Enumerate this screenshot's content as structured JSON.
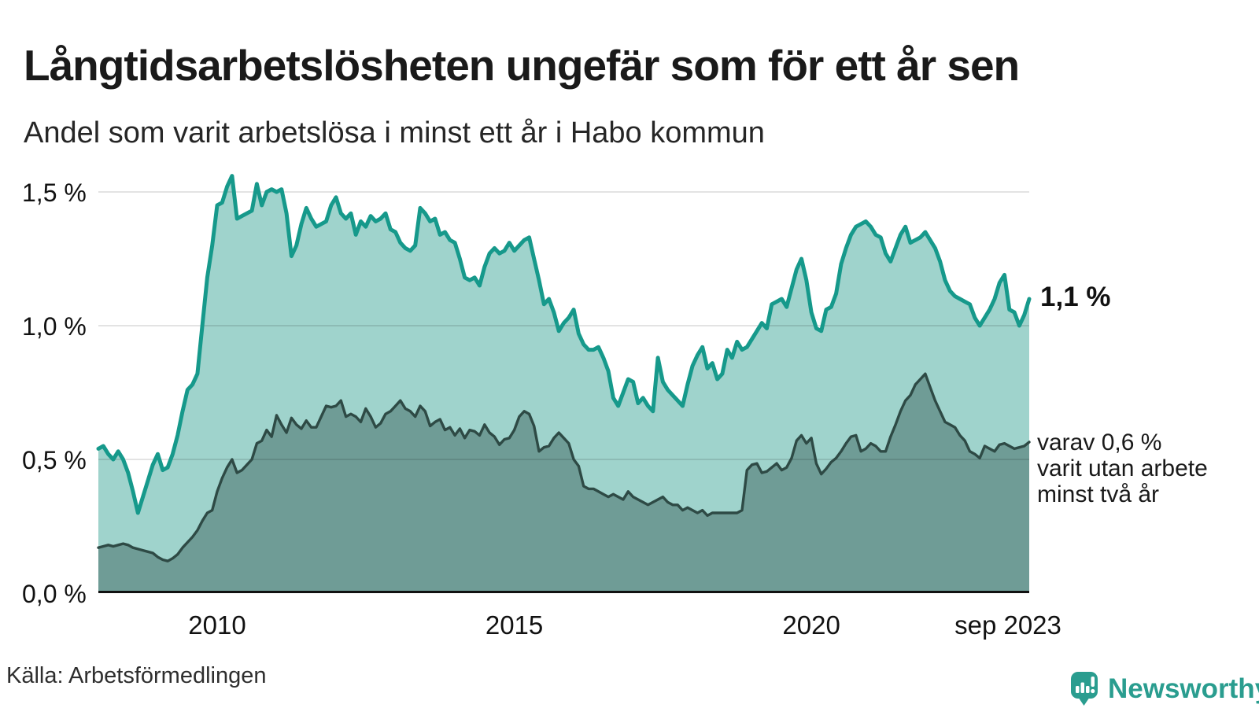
{
  "title": "Långtidsarbetslösheten ungefär som för ett år sen",
  "subtitle": "Andel som varit arbetslösa i minst ett år i Habo kommun",
  "source": "Källa: Arbetsförmedlingen",
  "branding": {
    "name": "Newsworthy"
  },
  "annotations": {
    "latest_total": "1,1 %",
    "secondary_line1": "varav 0,6 %",
    "secondary_line2": "varit utan arbete",
    "secondary_line3": "minst två år"
  },
  "colors": {
    "line_primary": "#16998b",
    "fill_primary": "#9fd3cc",
    "line_secondary": "#2e4a45",
    "fill_secondary": "#6f9c96",
    "axis": "#111111",
    "gridline": "rgba(0,0,0,0.11)",
    "brand_teal": "#2a9d8f"
  },
  "chart_data": {
    "type": "area",
    "title": "Långtidsarbetslösheten ungefär som för ett år sen",
    "subtitle": "Andel som varit arbetslösa i minst ett år i Habo kommun",
    "x_start": "2008-01",
    "x_end": "2023-09",
    "x_unit": "month",
    "ylabel": "",
    "ylim": [
      0,
      1.63
    ],
    "grid": "horizontal",
    "legend_position": "right-annotations",
    "y_ticks": [
      {
        "label": "1,5 %",
        "value": 1.5
      },
      {
        "label": "1,0 %",
        "value": 1.0
      },
      {
        "label": "0,5 %",
        "value": 0.5
      },
      {
        "label": "0,0 %",
        "value": 0.0
      }
    ],
    "x_ticks": [
      {
        "label": "2010",
        "month_index": 24
      },
      {
        "label": "2015",
        "month_index": 84
      },
      {
        "label": "2020",
        "month_index": 144
      },
      {
        "label": "sep 2023",
        "month_index": 188
      }
    ],
    "series": [
      {
        "name": "Andel arbetslösa minst ett år",
        "latest_label": "1,1 %",
        "color": "#16998b",
        "fill": "#9fd3cc",
        "values": [
          0.54,
          0.55,
          0.52,
          0.5,
          0.53,
          0.5,
          0.45,
          0.38,
          0.3,
          0.36,
          0.42,
          0.48,
          0.52,
          0.46,
          0.47,
          0.52,
          0.59,
          0.68,
          0.76,
          0.78,
          0.82,
          1.0,
          1.18,
          1.3,
          1.45,
          1.46,
          1.52,
          1.56,
          1.4,
          1.41,
          1.42,
          1.43,
          1.53,
          1.45,
          1.5,
          1.51,
          1.5,
          1.51,
          1.42,
          1.26,
          1.3,
          1.38,
          1.44,
          1.4,
          1.37,
          1.38,
          1.39,
          1.45,
          1.48,
          1.42,
          1.4,
          1.42,
          1.34,
          1.39,
          1.37,
          1.41,
          1.39,
          1.4,
          1.42,
          1.36,
          1.35,
          1.31,
          1.29,
          1.28,
          1.3,
          1.44,
          1.42,
          1.39,
          1.4,
          1.34,
          1.35,
          1.32,
          1.31,
          1.25,
          1.18,
          1.17,
          1.18,
          1.15,
          1.22,
          1.27,
          1.29,
          1.27,
          1.28,
          1.31,
          1.28,
          1.3,
          1.32,
          1.33,
          1.25,
          1.17,
          1.08,
          1.1,
          1.05,
          0.98,
          1.01,
          1.03,
          1.06,
          0.97,
          0.93,
          0.91,
          0.91,
          0.92,
          0.88,
          0.83,
          0.73,
          0.7,
          0.75,
          0.8,
          0.79,
          0.71,
          0.73,
          0.7,
          0.68,
          0.88,
          0.79,
          0.76,
          0.74,
          0.72,
          0.7,
          0.78,
          0.85,
          0.89,
          0.92,
          0.84,
          0.86,
          0.8,
          0.82,
          0.91,
          0.88,
          0.94,
          0.91,
          0.92,
          0.95,
          0.98,
          1.01,
          0.99,
          1.08,
          1.09,
          1.1,
          1.07,
          1.14,
          1.21,
          1.25,
          1.17,
          1.05,
          0.99,
          0.98,
          1.06,
          1.07,
          1.12,
          1.23,
          1.29,
          1.34,
          1.37,
          1.38,
          1.39,
          1.37,
          1.34,
          1.33,
          1.27,
          1.24,
          1.29,
          1.34,
          1.37,
          1.31,
          1.32,
          1.33,
          1.35,
          1.32,
          1.29,
          1.24,
          1.17,
          1.13,
          1.11,
          1.1,
          1.09,
          1.08,
          1.03,
          1.0,
          1.03,
          1.06,
          1.1,
          1.16,
          1.19,
          1.06,
          1.05,
          1.0,
          1.04,
          1.1
        ]
      },
      {
        "name": "varav utan arbete minst två år",
        "latest_label": "0,6 %",
        "color": "#2e4a45",
        "fill": "#6f9c96",
        "values": [
          0.17,
          0.175,
          0.18,
          0.175,
          0.18,
          0.185,
          0.18,
          0.17,
          0.165,
          0.16,
          0.155,
          0.15,
          0.135,
          0.125,
          0.12,
          0.13,
          0.145,
          0.17,
          0.19,
          0.21,
          0.235,
          0.27,
          0.3,
          0.31,
          0.38,
          0.43,
          0.47,
          0.5,
          0.45,
          0.46,
          0.48,
          0.5,
          0.56,
          0.57,
          0.61,
          0.585,
          0.665,
          0.63,
          0.6,
          0.655,
          0.63,
          0.615,
          0.645,
          0.62,
          0.62,
          0.66,
          0.7,
          0.695,
          0.7,
          0.72,
          0.66,
          0.67,
          0.66,
          0.64,
          0.69,
          0.66,
          0.62,
          0.635,
          0.67,
          0.68,
          0.7,
          0.72,
          0.69,
          0.68,
          0.66,
          0.7,
          0.68,
          0.625,
          0.64,
          0.65,
          0.61,
          0.62,
          0.59,
          0.615,
          0.58,
          0.61,
          0.605,
          0.59,
          0.63,
          0.6,
          0.585,
          0.555,
          0.575,
          0.58,
          0.61,
          0.66,
          0.68,
          0.67,
          0.625,
          0.53,
          0.545,
          0.55,
          0.58,
          0.6,
          0.58,
          0.56,
          0.5,
          0.475,
          0.4,
          0.39,
          0.39,
          0.38,
          0.37,
          0.36,
          0.37,
          0.36,
          0.35,
          0.38,
          0.36,
          0.35,
          0.34,
          0.33,
          0.34,
          0.35,
          0.36,
          0.34,
          0.33,
          0.33,
          0.31,
          0.32,
          0.31,
          0.3,
          0.31,
          0.29,
          0.3,
          0.3,
          0.3,
          0.3,
          0.3,
          0.3,
          0.31,
          0.46,
          0.48,
          0.485,
          0.45,
          0.455,
          0.47,
          0.485,
          0.46,
          0.47,
          0.505,
          0.57,
          0.59,
          0.56,
          0.58,
          0.485,
          0.445,
          0.465,
          0.49,
          0.505,
          0.53,
          0.56,
          0.585,
          0.59,
          0.53,
          0.54,
          0.56,
          0.55,
          0.53,
          0.53,
          0.585,
          0.63,
          0.68,
          0.72,
          0.74,
          0.78,
          0.8,
          0.82,
          0.77,
          0.72,
          0.68,
          0.64,
          0.63,
          0.62,
          0.59,
          0.57,
          0.53,
          0.52,
          0.505,
          0.55,
          0.54,
          0.53,
          0.555,
          0.56,
          0.55,
          0.54,
          0.545,
          0.55,
          0.565
        ]
      }
    ]
  }
}
